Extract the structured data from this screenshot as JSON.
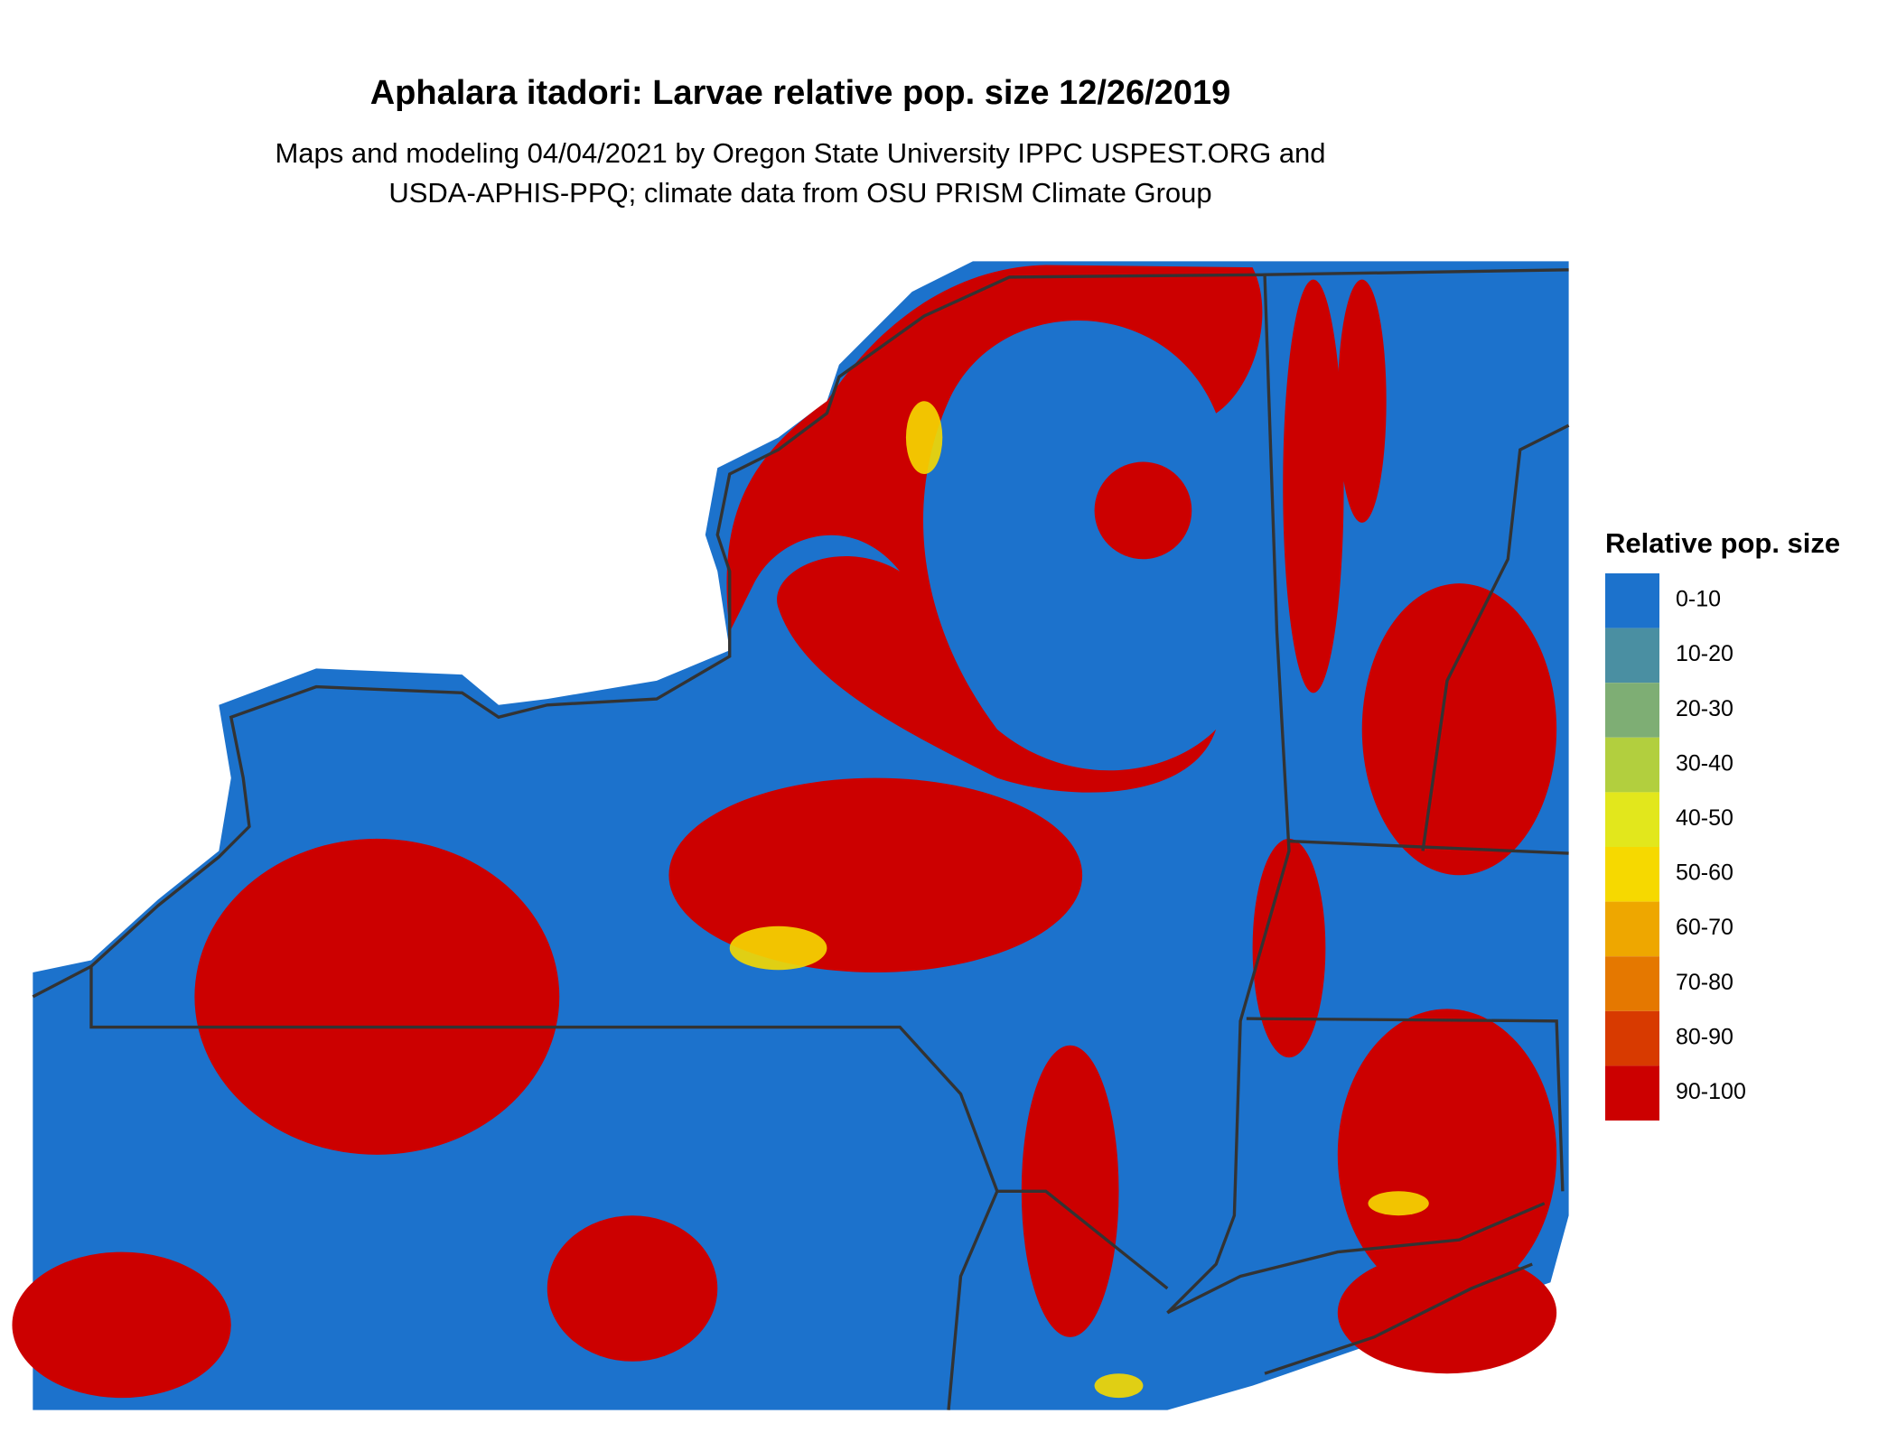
{
  "header": {
    "title": "Aphalara itadori: Larvae relative pop. size 12/26/2019",
    "subtitle": [
      "Maps and modeling 04/04/2021 by Oregon State University IPPC USPEST.ORG and",
      "USDA-APHIS-PPQ; climate data from OSU PRISM Climate Group"
    ]
  },
  "legend": {
    "title": "Relative pop. size",
    "items": [
      {
        "label": "0-10",
        "color": "#1c72cc"
      },
      {
        "label": "10-20",
        "color": "#4a8fa2"
      },
      {
        "label": "20-30",
        "color": "#7eae74"
      },
      {
        "label": "30-40",
        "color": "#b2cf3e"
      },
      {
        "label": "40-50",
        "color": "#e2e71c"
      },
      {
        "label": "50-60",
        "color": "#f6d900"
      },
      {
        "label": "60-70",
        "color": "#eea700"
      },
      {
        "label": "70-80",
        "color": "#e57800"
      },
      {
        "label": "80-90",
        "color": "#d83a00"
      },
      {
        "label": "90-100",
        "color": "#cc0000"
      }
    ]
  }
}
